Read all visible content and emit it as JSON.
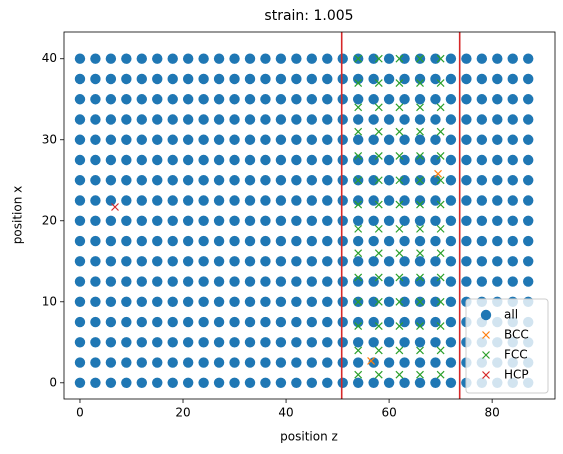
{
  "chart_data": {
    "type": "scatter",
    "title": "strain: 1.005",
    "xlabel": "position z",
    "ylabel": "position x",
    "xlim": [
      -3.1,
      92.2
    ],
    "ylim": [
      -2.0,
      43.3
    ],
    "xticks": [
      0,
      20,
      40,
      60,
      80
    ],
    "yticks": [
      0,
      10,
      20,
      30,
      40
    ],
    "legend": "lower right",
    "vlines": {
      "color": "#d62728",
      "x": [
        50.8,
        73.7
      ]
    },
    "series": [
      {
        "name": "all",
        "color": "#1f77b4",
        "marker": "o",
        "x": [
          0,
          3,
          6,
          9,
          12,
          15,
          18,
          21,
          24,
          27,
          30,
          33,
          36,
          39,
          42,
          45,
          48,
          51,
          54,
          57,
          60,
          63,
          66,
          69,
          72,
          75,
          78,
          81,
          84,
          87,
          0,
          3,
          6,
          9,
          12,
          15,
          18,
          21,
          24,
          27,
          30,
          33,
          36,
          39,
          42,
          45,
          48,
          51,
          54,
          57,
          60,
          63,
          66,
          69,
          72,
          75,
          78,
          81,
          84,
          87,
          0,
          3,
          6,
          9,
          12,
          15,
          18,
          21,
          24,
          27,
          30,
          33,
          36,
          39,
          42,
          45,
          48,
          51,
          54,
          57,
          60,
          63,
          66,
          69,
          72,
          75,
          78,
          81,
          84,
          87,
          0,
          3,
          6,
          9,
          12,
          15,
          18,
          21,
          24,
          27,
          30,
          33,
          36,
          39,
          42,
          45,
          48,
          51,
          54,
          57,
          60,
          63,
          66,
          69,
          72,
          75,
          78,
          81,
          84,
          87,
          0,
          3,
          6,
          9,
          12,
          15,
          18,
          21,
          24,
          27,
          30,
          33,
          36,
          39,
          42,
          45,
          48,
          51,
          54,
          57,
          60,
          63,
          66,
          69,
          72,
          75,
          78,
          81,
          84,
          87,
          0,
          3,
          6,
          9,
          12,
          15,
          18,
          21,
          24,
          27,
          30,
          33,
          36,
          39,
          42,
          45,
          48,
          51,
          54,
          57,
          60,
          63,
          66,
          69,
          72,
          75,
          78,
          81,
          84,
          87,
          0,
          3,
          6,
          9,
          12,
          15,
          18,
          21,
          24,
          27,
          30,
          33,
          36,
          39,
          42,
          45,
          48,
          51,
          54,
          57,
          60,
          63,
          66,
          69,
          72,
          75,
          78,
          81,
          84,
          87,
          0,
          3,
          6,
          9,
          12,
          15,
          18,
          21,
          24,
          27,
          30,
          33,
          36,
          39,
          42,
          45,
          48,
          51,
          54,
          57,
          60,
          63,
          66,
          69,
          72,
          75,
          78,
          81,
          84,
          87,
          0,
          3,
          6,
          9,
          12,
          15,
          18,
          21,
          24,
          27,
          30,
          33,
          36,
          39,
          42,
          45,
          48,
          51,
          54,
          57,
          60,
          63,
          66,
          69,
          72,
          75,
          78,
          81,
          84,
          87,
          0,
          3,
          6,
          9,
          12,
          15,
          18,
          21,
          24,
          27,
          30,
          33,
          36,
          39,
          42,
          45,
          48,
          51,
          54,
          57,
          60,
          63,
          66,
          69,
          72,
          75,
          78,
          81,
          84,
          87,
          0,
          3,
          6,
          9,
          12,
          15,
          18,
          21,
          24,
          27,
          30,
          33,
          36,
          39,
          42,
          45,
          48,
          51,
          54,
          57,
          60,
          63,
          66,
          69,
          72,
          75,
          78,
          81,
          84,
          87,
          0,
          3,
          6,
          9,
          12,
          15,
          18,
          21,
          24,
          27,
          30,
          33,
          36,
          39,
          42,
          45,
          48,
          51,
          54,
          57,
          60,
          63,
          66,
          69,
          72,
          75,
          78,
          81,
          84,
          87,
          0,
          3,
          6,
          9,
          12,
          15,
          18,
          21,
          24,
          27,
          30,
          33,
          36,
          39,
          42,
          45,
          48,
          51,
          54,
          57,
          60,
          63,
          66,
          69,
          72,
          75,
          78,
          81,
          84,
          87,
          0,
          3,
          6,
          9,
          12,
          15,
          18,
          21,
          24,
          27,
          30,
          33,
          36,
          39,
          42,
          45,
          48,
          51,
          54,
          57,
          60,
          63,
          66,
          69,
          72,
          75,
          78,
          81,
          84,
          87,
          0,
          3,
          6,
          9,
          12,
          15,
          18,
          21,
          24,
          27,
          30,
          33,
          36,
          39,
          42,
          45,
          48,
          51,
          54,
          57,
          60,
          63,
          66,
          69,
          72,
          75,
          78,
          81,
          84,
          87,
          0,
          3,
          6,
          9,
          12,
          15,
          18,
          21,
          24,
          27,
          30,
          33,
          36,
          39,
          42,
          45,
          48,
          51,
          54,
          57,
          60,
          63,
          66,
          69,
          72,
          75,
          78,
          81,
          84,
          87,
          0,
          3,
          6,
          9,
          12,
          15,
          18,
          21,
          24,
          27,
          30,
          33,
          36,
          39,
          42,
          45,
          48,
          51,
          54,
          57,
          60,
          63,
          66,
          69,
          72,
          75,
          78,
          81,
          84,
          87
        ],
        "values": [
          0,
          0,
          0,
          0,
          0,
          0,
          0,
          0,
          0,
          0,
          0,
          0,
          0,
          0,
          0,
          0,
          0,
          0,
          0,
          0,
          0,
          0,
          0,
          0,
          0,
          0,
          0,
          0,
          0,
          0,
          2.5,
          2.5,
          2.5,
          2.5,
          2.5,
          2.5,
          2.5,
          2.5,
          2.5,
          2.5,
          2.5,
          2.5,
          2.5,
          2.5,
          2.5,
          2.5,
          2.5,
          2.5,
          2.5,
          2.5,
          2.5,
          2.5,
          2.5,
          2.5,
          2.5,
          2.5,
          2.5,
          2.5,
          2.5,
          2.5,
          5,
          5,
          5,
          5,
          5,
          5,
          5,
          5,
          5,
          5,
          5,
          5,
          5,
          5,
          5,
          5,
          5,
          5,
          5,
          5,
          5,
          5,
          5,
          5,
          5,
          5,
          5,
          5,
          5,
          5,
          7.5,
          7.5,
          7.5,
          7.5,
          7.5,
          7.5,
          7.5,
          7.5,
          7.5,
          7.5,
          7.5,
          7.5,
          7.5,
          7.5,
          7.5,
          7.5,
          7.5,
          7.5,
          7.5,
          7.5,
          7.5,
          7.5,
          7.5,
          7.5,
          7.5,
          7.5,
          7.5,
          7.5,
          7.5,
          7.5,
          10,
          10,
          10,
          10,
          10,
          10,
          10,
          10,
          10,
          10,
          10,
          10,
          10,
          10,
          10,
          10,
          10,
          10,
          10,
          10,
          10,
          10,
          10,
          10,
          10,
          10,
          10,
          10,
          10,
          10,
          12.5,
          12.5,
          12.5,
          12.5,
          12.5,
          12.5,
          12.5,
          12.5,
          12.5,
          12.5,
          12.5,
          12.5,
          12.5,
          12.5,
          12.5,
          12.5,
          12.5,
          12.5,
          12.5,
          12.5,
          12.5,
          12.5,
          12.5,
          12.5,
          12.5,
          12.5,
          12.5,
          12.5,
          12.5,
          12.5,
          15,
          15,
          15,
          15,
          15,
          15,
          15,
          15,
          15,
          15,
          15,
          15,
          15,
          15,
          15,
          15,
          15,
          15,
          15,
          15,
          15,
          15,
          15,
          15,
          15,
          15,
          15,
          15,
          15,
          15,
          17.5,
          17.5,
          17.5,
          17.5,
          17.5,
          17.5,
          17.5,
          17.5,
          17.5,
          17.5,
          17.5,
          17.5,
          17.5,
          17.5,
          17.5,
          17.5,
          17.5,
          17.5,
          17.5,
          17.5,
          17.5,
          17.5,
          17.5,
          17.5,
          17.5,
          17.5,
          17.5,
          17.5,
          17.5,
          17.5,
          20,
          20,
          20,
          20,
          20,
          20,
          20,
          20,
          20,
          20,
          20,
          20,
          20,
          20,
          20,
          20,
          20,
          20,
          20,
          20,
          20,
          20,
          20,
          20,
          20,
          20,
          20,
          20,
          20,
          20,
          22.5,
          22.5,
          22.5,
          22.5,
          22.5,
          22.5,
          22.5,
          22.5,
          22.5,
          22.5,
          22.5,
          22.5,
          22.5,
          22.5,
          22.5,
          22.5,
          22.5,
          22.5,
          22.5,
          22.5,
          22.5,
          22.5,
          22.5,
          22.5,
          22.5,
          22.5,
          22.5,
          22.5,
          22.5,
          22.5,
          25,
          25,
          25,
          25,
          25,
          25,
          25,
          25,
          25,
          25,
          25,
          25,
          25,
          25,
          25,
          25,
          25,
          25,
          25,
          25,
          25,
          25,
          25,
          25,
          25,
          25,
          25,
          25,
          25,
          25,
          27.5,
          27.5,
          27.5,
          27.5,
          27.5,
          27.5,
          27.5,
          27.5,
          27.5,
          27.5,
          27.5,
          27.5,
          27.5,
          27.5,
          27.5,
          27.5,
          27.5,
          27.5,
          27.5,
          27.5,
          27.5,
          27.5,
          27.5,
          27.5,
          27.5,
          27.5,
          27.5,
          27.5,
          27.5,
          27.5,
          30,
          30,
          30,
          30,
          30,
          30,
          30,
          30,
          30,
          30,
          30,
          30,
          30,
          30,
          30,
          30,
          30,
          30,
          30,
          30,
          30,
          30,
          30,
          30,
          30,
          30,
          30,
          30,
          30,
          30,
          32.5,
          32.5,
          32.5,
          32.5,
          32.5,
          32.5,
          32.5,
          32.5,
          32.5,
          32.5,
          32.5,
          32.5,
          32.5,
          32.5,
          32.5,
          32.5,
          32.5,
          32.5,
          32.5,
          32.5,
          32.5,
          32.5,
          32.5,
          32.5,
          32.5,
          32.5,
          32.5,
          32.5,
          32.5,
          32.5,
          35,
          35,
          35,
          35,
          35,
          35,
          35,
          35,
          35,
          35,
          35,
          35,
          35,
          35,
          35,
          35,
          35,
          35,
          35,
          35,
          35,
          35,
          35,
          35,
          35,
          35,
          35,
          35,
          35,
          35,
          37.5,
          37.5,
          37.5,
          37.5,
          37.5,
          37.5,
          37.5,
          37.5,
          37.5,
          37.5,
          37.5,
          37.5,
          37.5,
          37.5,
          37.5,
          37.5,
          37.5,
          37.5,
          37.5,
          37.5,
          37.5,
          37.5,
          37.5,
          37.5,
          37.5,
          37.5,
          37.5,
          37.5,
          37.5,
          37.5,
          40,
          40,
          40,
          40,
          40,
          40,
          40,
          40,
          40,
          40,
          40,
          40,
          40,
          40,
          40,
          40,
          40,
          40,
          40,
          40,
          40,
          40,
          40,
          40,
          40,
          40,
          40,
          40,
          40,
          40
        ]
      },
      {
        "name": "BCC",
        "color": "#ff7f0e",
        "marker": "x",
        "x": [
          56.5,
          69.5
        ],
        "values": [
          2.7,
          25.8
        ]
      },
      {
        "name": "FCC",
        "color": "#2ca02c",
        "marker": "x",
        "x": [
          54,
          58,
          62,
          66,
          70,
          54,
          58,
          62,
          66,
          70,
          54,
          58,
          62,
          66,
          70,
          54,
          58,
          62,
          66,
          70,
          54,
          58,
          62,
          66,
          70,
          54,
          58,
          62,
          66,
          70,
          54,
          58,
          62,
          66,
          70,
          54,
          58,
          62,
          66,
          70,
          54,
          58,
          62,
          66,
          70,
          54,
          58,
          62,
          66,
          70,
          54,
          58,
          62,
          66,
          70,
          54,
          58,
          62,
          66,
          70,
          54,
          58,
          62,
          66,
          70,
          54,
          58,
          62,
          66,
          70
        ],
        "values": [
          1,
          1,
          1,
          1,
          1,
          4,
          4,
          4,
          4,
          4,
          7,
          7,
          7,
          7,
          7,
          10,
          10,
          10,
          10,
          10,
          13,
          13,
          13,
          13,
          13,
          16,
          16,
          16,
          16,
          16,
          19,
          19,
          19,
          19,
          19,
          22,
          22,
          22,
          22,
          22,
          25,
          25,
          25,
          25,
          25,
          28,
          28,
          28,
          28,
          28,
          31,
          31,
          31,
          31,
          31,
          34,
          34,
          34,
          34,
          34,
          37,
          37,
          37,
          37,
          37,
          40,
          40,
          40,
          40,
          40
        ]
      },
      {
        "name": "HCP",
        "color": "#d62728",
        "marker": "x",
        "x": [
          6.8
        ],
        "values": [
          21.7
        ]
      }
    ]
  }
}
